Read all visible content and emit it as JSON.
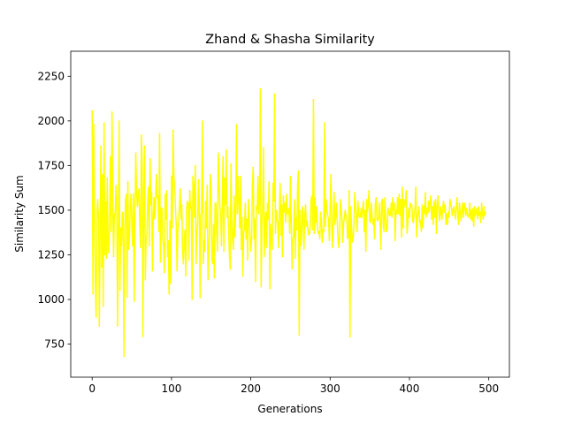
{
  "chart_data": {
    "type": "line",
    "title": "Zhand & Shasha Similarity",
    "xlabel": "Generations",
    "ylabel": "Similarity Sum",
    "xlim": [
      -27,
      526
    ],
    "ylim": [
      565,
      2390
    ],
    "xticks": [
      0,
      100,
      200,
      300,
      400,
      500
    ],
    "yticks": [
      750,
      1000,
      1250,
      1500,
      1750,
      2000,
      2250
    ],
    "xtick_labels": [
      "0",
      "100",
      "200",
      "300",
      "400",
      "500"
    ],
    "ytick_labels": [
      "750",
      "1000",
      "1250",
      "1500",
      "1750",
      "2000",
      "2250"
    ],
    "grid": false,
    "legend": "none",
    "series": [
      {
        "color": "#ffff00",
        "x_start": 0,
        "x_step": 1,
        "values": [
          2060,
          1030,
          1980,
          1450,
          1100,
          900,
          1500,
          1560,
          1450,
          850,
          1350,
          1860,
          1180,
          1700,
          960,
          1990,
          1250,
          1550,
          1230,
          1680,
          1300,
          1260,
          1440,
          1800,
          1380,
          2050,
          1550,
          1240,
          1480,
          1470,
          1640,
          1550,
          850,
          1400,
          2000,
          1050,
          1400,
          1300,
          1480,
          1490,
          680,
          1330,
          1550,
          1590,
          1010,
          1660,
          1280,
          1350,
          1520,
          1590,
          1420,
          1300,
          1590,
          990,
          1480,
          1820,
          1590,
          1520,
          1580,
          1620,
          1410,
          1290,
          1920,
          1750,
          790,
          1580,
          1860,
          1110,
          1350,
          1360,
          1550,
          1630,
          1300,
          1790,
          1530,
          1600,
          1160,
          1460,
          1570,
          1450,
          1560,
          1700,
          1570,
          1580,
          1380,
          1930,
          1210,
          1510,
          1510,
          1340,
          1300,
          1150,
          1590,
          1450,
          1610,
          1240,
          1330,
          1030,
          1440,
          1090,
          1690,
          1400,
          1950,
          1690,
          1630,
          1510,
          1420,
          1160,
          1390,
          1430,
          1520,
          1620,
          1450,
          1530,
          1270,
          1200,
          1320,
          1390,
          1130,
          1500,
          1550,
          1540,
          1220,
          1610,
          1510,
          1520,
          1000,
          1690,
          1640,
          1460,
          1750,
          1200,
          1360,
          1430,
          1670,
          1560,
          1010,
          1470,
          1490,
          2000,
          1200,
          1330,
          1270,
          1550,
          1400,
          1640,
          1110,
          1250,
          1410,
          1700,
          1600,
          1220,
          1200,
          1420,
          1120,
          1540,
          1540,
          1360,
          1270,
          1820,
          1650,
          1520,
          1470,
          1300,
          1520,
          1800,
          1270,
          1680,
          1530,
          1840,
          1460,
          1520,
          1390,
          1250,
          1170,
          1760,
          1440,
          1330,
          1280,
          1580,
          1350,
          1500,
          1980,
          1480,
          1690,
          1550,
          1400,
          1690,
          1280,
          1460,
          1130,
          1380,
          1390,
          1540,
          1340,
          1450,
          1220,
          1560,
          1460,
          1350,
          1270,
          1330,
          1640,
          1740,
          1340,
          1450,
          1100,
          1520,
          1500,
          1690,
          1480,
          1540,
          2180,
          1070,
          1400,
          1540,
          1850,
          1240,
          1450,
          1490,
          1290,
          1540,
          1450,
          1660,
          1060,
          1420,
          1350,
          1280,
          1650,
          1550,
          2150,
          1370,
          1500,
          1450,
          1430,
          1290,
          1500,
          1650,
          1360,
          1530,
          1240,
          1580,
          1490,
          1540,
          1430,
          1590,
          1480,
          1480,
          1510,
          1370,
          1690,
          1420,
          1170,
          1330,
          1360,
          1560,
          1230,
          1460,
          1390,
          1640,
          1720,
          800,
          1500,
          1300,
          1350,
          1520,
          1460,
          1280,
          1480,
          1530,
          1410,
          1440,
          1390,
          1360,
          1370,
          1420,
          1560,
          1580,
          1390,
          2120,
          1370,
          1570,
          1430,
          1520,
          1410,
          1370,
          1380,
          1340,
          1490,
          1440,
          1320,
          1390,
          1380,
          1990,
          1410,
          1560,
          1500,
          1470,
          1450,
          1330,
          1510,
          1700,
          1430,
          1290,
          1450,
          1600,
          1420,
          1460,
          1540,
          1430,
          1340,
          1290,
          1360,
          1560,
          1500,
          1450,
          1320,
          1430,
          1460,
          1500,
          1470,
          1450,
          1340,
          1350,
          1610,
          790,
          1520,
          1410,
          1320,
          1340,
          1410,
          1600,
          1530,
          1460,
          1380,
          1550,
          1470,
          1460,
          1460,
          1510,
          1460,
          1510,
          1550,
          1380,
          1500,
          1270,
          1560,
          1490,
          1530,
          1610,
          1440,
          1430,
          1540,
          1460,
          1420,
          1450,
          1340,
          1540,
          1570,
          1450,
          1440,
          1460,
          1540,
          1420,
          1280,
          1550,
          1560,
          1410,
          1380,
          1570,
          1450,
          1380,
          1400,
          1510,
          1490,
          1470,
          1470,
          1540,
          1460,
          1570,
          1500,
          1540,
          1330,
          1500,
          1480,
          1570,
          1480,
          1590,
          1470,
          1560,
          1350,
          1630,
          1400,
          1560,
          1520,
          1550,
          1610,
          1370,
          1430,
          1510,
          1460,
          1540,
          1520,
          1530,
          1440,
          1430,
          1480,
          1510,
          1630,
          1350,
          1450,
          1490,
          1520,
          1430,
          1440,
          1380,
          1530,
          1400,
          1520,
          1480,
          1600,
          1460,
          1510,
          1480,
          1550,
          1490,
          1550,
          1580,
          1450,
          1520,
          1420,
          1550,
          1460,
          1560,
          1370,
          1520,
          1580,
          1500,
          1440,
          1520,
          1490,
          1450,
          1520,
          1550,
          1490,
          1530,
          1420,
          1480,
          1420,
          1490,
          1460,
          1560,
          1540,
          1510,
          1470,
          1500,
          1520,
          1490,
          1450,
          1520,
          1570,
          1470,
          1420,
          1540,
          1500,
          1440,
          1490,
          1540,
          1460,
          1540,
          1530,
          1470,
          1510,
          1480,
          1460,
          1470,
          1540,
          1450,
          1500,
          1440,
          1510,
          1410,
          1520,
          1470,
          1480,
          1510,
          1450,
          1520,
          1470,
          1490,
          1430,
          1540,
          1480,
          1450,
          1520,
          1470,
          1490
        ]
      }
    ]
  }
}
